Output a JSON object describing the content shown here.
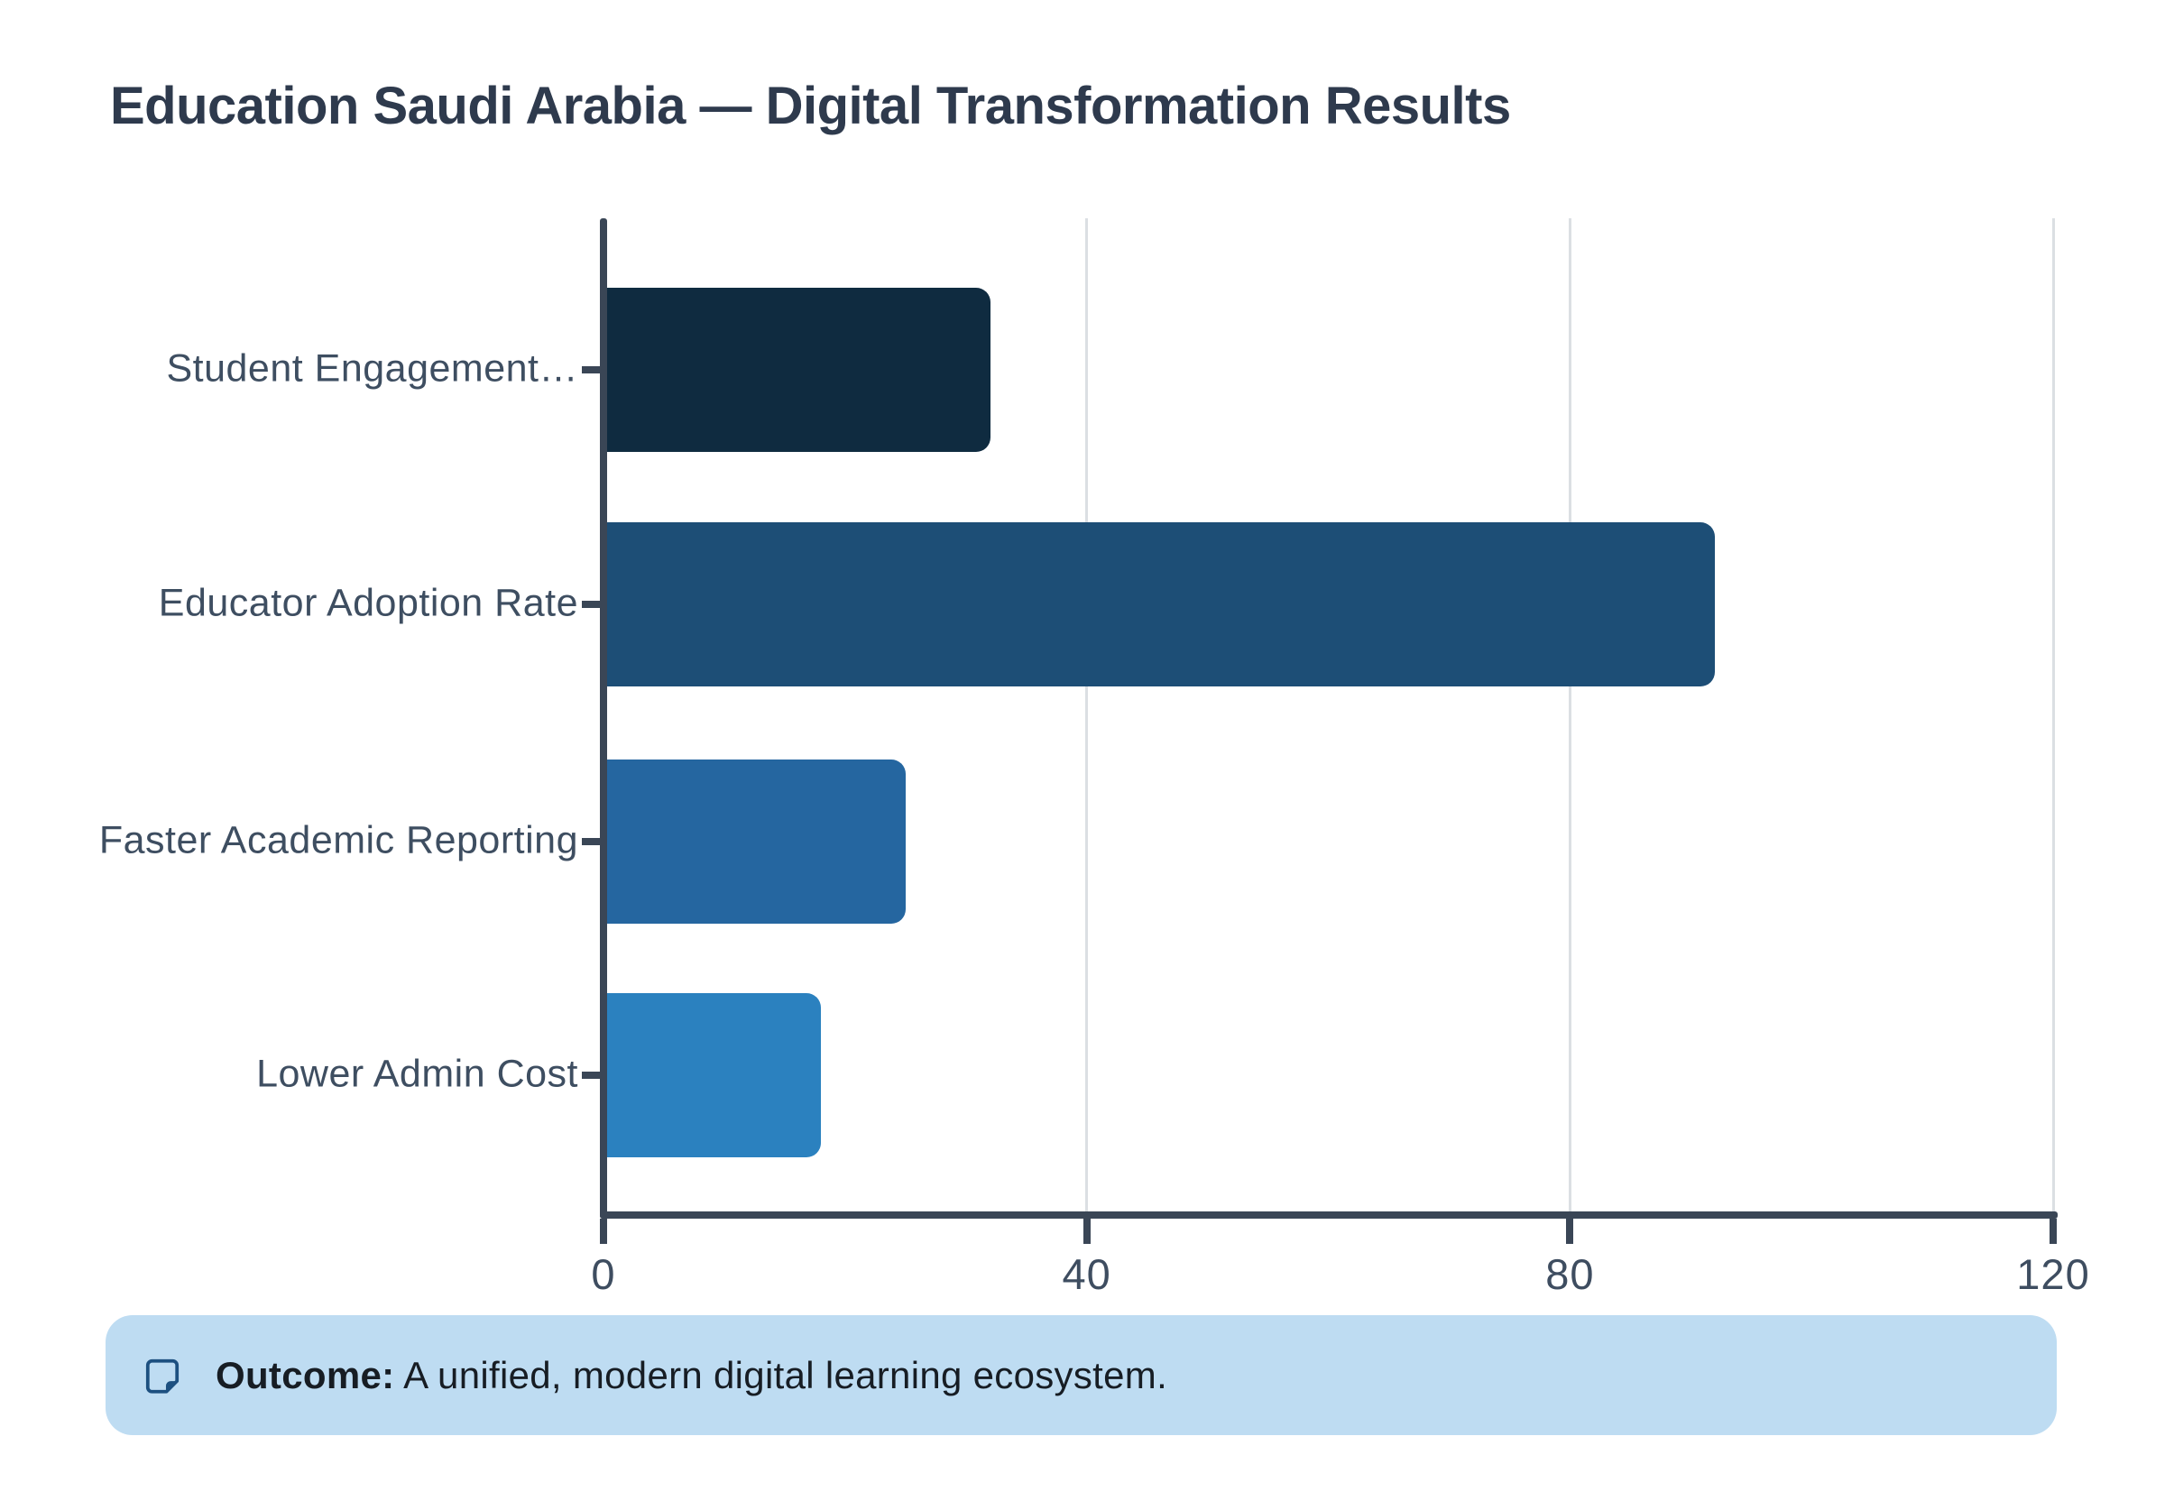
{
  "page": {
    "background": "#ffffff"
  },
  "chart_data": {
    "type": "bar",
    "orientation": "horizontal",
    "title": "Education Saudi Arabia — Digital Transformation Results",
    "categories": [
      "Student Engagement…",
      "Educator Adoption Rate",
      "Faster Academic Reporting",
      "Lower Admin Cost"
    ],
    "values": [
      32,
      92,
      25,
      18
    ],
    "xlim": [
      0,
      120
    ],
    "xticks": [
      0,
      40,
      80,
      120
    ],
    "grid": "vertical gridlines at 40, 80, 120",
    "legend": "none",
    "bar_colors": [
      "#0f2b40",
      "#1d4e76",
      "#2566a0",
      "#2b81bf"
    ],
    "axis_color": "#3a4656",
    "gridline_color": "#dbdfe3",
    "tick_label_color": "#3e4d60",
    "category_label_color": "#3e4e61",
    "title_color": "#2e3a4d"
  },
  "banner": {
    "icon": "sticky-note-icon",
    "label_bold": "Outcome:",
    "text": "A unified, modern digital learning ecosystem.",
    "background": "#bedcf2",
    "icon_color": "#1d5080",
    "text_color": "#171d24"
  }
}
